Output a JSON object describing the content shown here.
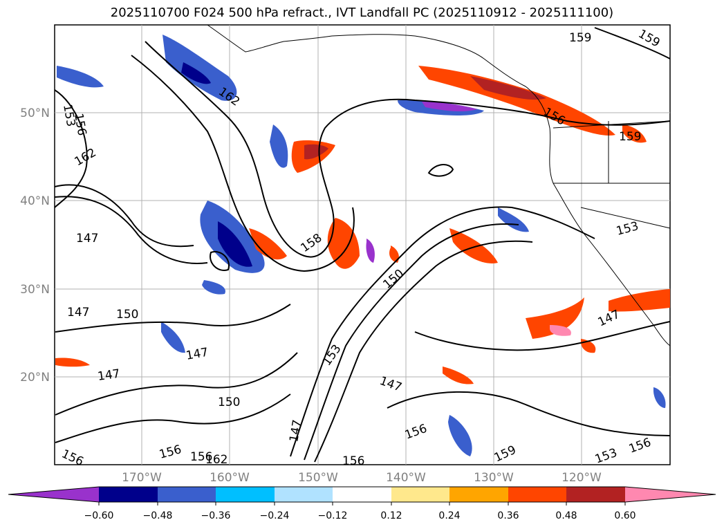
{
  "title": "2025110700 F024 500 hPa refract., IVT Landfall PC (2025110912 - 2025111100)",
  "map": {
    "lat_labels": [
      "50°N",
      "40°N",
      "30°N",
      "20°N"
    ],
    "lon_labels": [
      "170°W",
      "160°W",
      "150°W",
      "140°W",
      "130°W",
      "120°W"
    ],
    "contour_labels": [
      "159",
      "159",
      "162",
      "156",
      "159",
      "153",
      "156",
      "162",
      "147",
      "147",
      "150",
      "147",
      "147",
      "150",
      "158",
      "150",
      "153",
      "147",
      "147",
      "153",
      "147",
      "156",
      "159",
      "156",
      "156",
      "156",
      "162",
      "156",
      "153",
      "156"
    ]
  },
  "colorbar": {
    "tick_labels": [
      "−0.60",
      "−0.48",
      "−0.36",
      "−0.24",
      "−0.12",
      "0.12",
      "0.24",
      "0.36",
      "0.48",
      "0.60"
    ],
    "colors": [
      "#9932CC",
      "#00008B",
      "#3A5FCD",
      "#00BFFF",
      "#B0E2FF",
      "#FFFFFF",
      "#FFE88C",
      "#FFA500",
      "#FF4500",
      "#B22222",
      "#FF88B0"
    ]
  }
}
